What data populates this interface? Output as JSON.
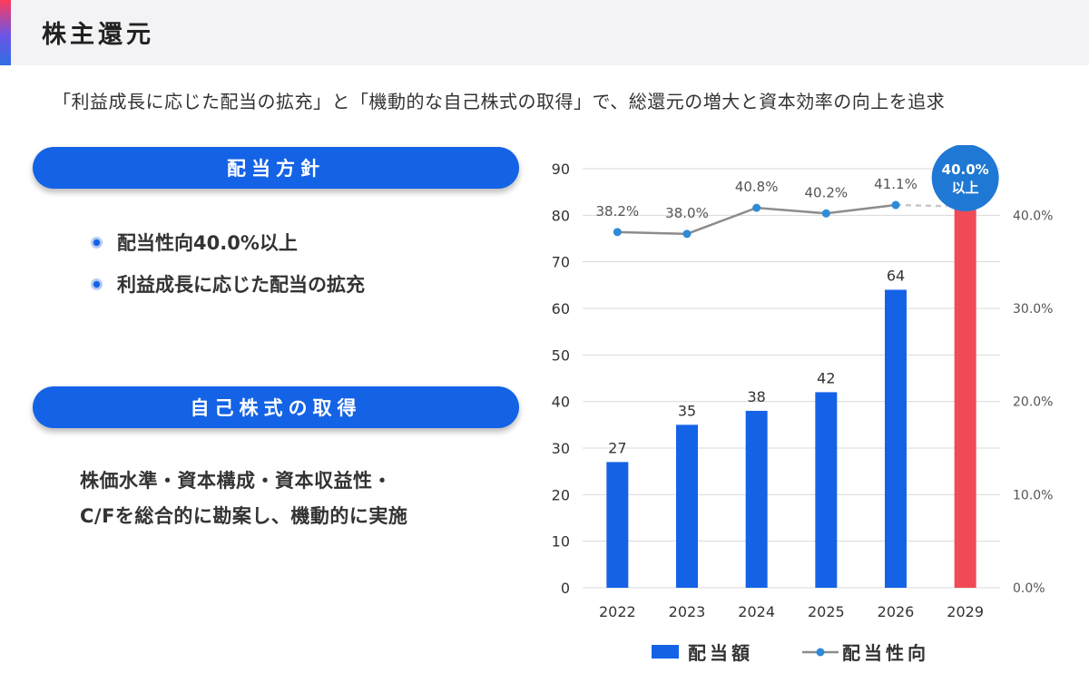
{
  "title": "株主還元",
  "subtitle": "「利益成長に応じた配当の拡充」と「機動的な自己株式の取得」で、総還元の増大と資本効率の向上を追求",
  "dividend_policy": {
    "header": "配当方針",
    "bullets": [
      "配当性向40.0%以上",
      "利益成長に応じた配当の拡充"
    ]
  },
  "buyback": {
    "header": "自己株式の取得",
    "lines": [
      "株価水準・資本構成・資本収益性・",
      "C/Fを総合的に勘案し、機動的に実施"
    ]
  },
  "colors": {
    "bar": "#1463e6",
    "bar_highlight": "#ef4a55",
    "line": "#8c8c8c",
    "marker": "#2f8ad8",
    "callout": "#1f79d4"
  },
  "chart_data": {
    "type": "bar",
    "categories": [
      "2022",
      "2023",
      "2024",
      "2025",
      "2026",
      "2029"
    ],
    "series": [
      {
        "name": "配当額",
        "values": [
          27,
          35,
          38,
          42,
          64,
          null
        ],
        "labels": [
          "27",
          "35",
          "38",
          "42",
          "64",
          ""
        ]
      },
      {
        "name": "配当性向",
        "axis": "right",
        "values": [
          38.2,
          38.0,
          40.8,
          40.2,
          41.1,
          40.0
        ],
        "labels": [
          "38.2%",
          "38.0%",
          "40.8%",
          "40.2%",
          "41.1%",
          ""
        ]
      }
    ],
    "highlight": {
      "category": "2029",
      "note": "bar drawn in red extending beyond the top of the left axis",
      "callout": [
        "40.0%",
        "以上"
      ]
    },
    "ylim": [
      0,
      90
    ],
    "yticks": [
      "0",
      "10",
      "20",
      "30",
      "40",
      "50",
      "60",
      "70",
      "80",
      "90"
    ],
    "y2lim": [
      0,
      45
    ],
    "y2ticks": [
      "0.0%",
      "10.0%",
      "20.0%",
      "30.0%",
      "40.0%"
    ],
    "grid": true,
    "legend": "bottom"
  }
}
